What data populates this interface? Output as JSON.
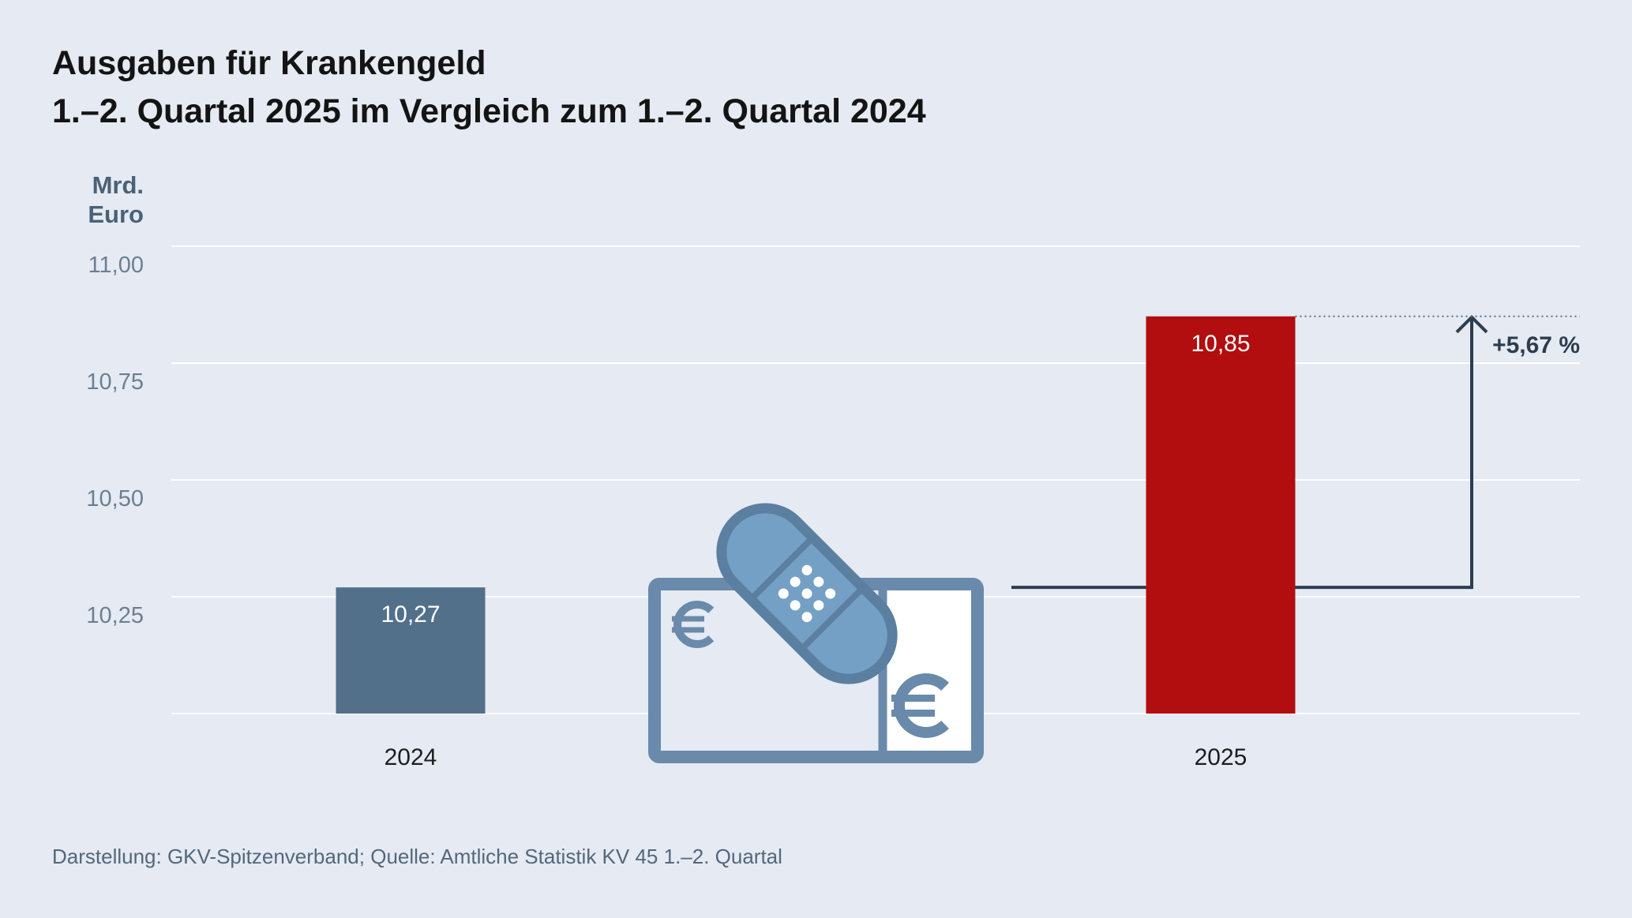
{
  "chart_data": {
    "type": "bar",
    "title": "Ausgaben für Krankengeld",
    "subtitle": "1.–2. Quartal 2025 im Vergleich zum 1.–2. Quartal 2024",
    "ylabel_lines": [
      "Mrd.",
      "Euro"
    ],
    "xlabel": "",
    "categories": [
      "2024",
      "2025"
    ],
    "values": [
      10.27,
      10.85
    ],
    "value_labels": [
      "10,27",
      "10,85"
    ],
    "ylim": [
      10.0,
      11.0
    ],
    "y_ticks": [
      {
        "value": 11.0,
        "label": "11,00"
      },
      {
        "value": 10.75,
        "label": "10,75"
      },
      {
        "value": 10.5,
        "label": "10,50"
      },
      {
        "value": 10.25,
        "label": "10,25"
      }
    ],
    "grid": true,
    "annotation": {
      "label": "+5,67 %"
    },
    "colors": {
      "bars": [
        "#52708a",
        "#b20d0f"
      ],
      "annotation": "#2c3d4f"
    }
  },
  "source": "Darstellung: GKV-Spitzenverband; Quelle: Amtliche Statistik KV 45 1.–2. Quartal",
  "illustration": {
    "icon": "banknote-bandage-icon"
  },
  "colors": {
    "background": "#e5eaf3",
    "illustration": "#6a8aab",
    "bandage": "#75a0c5"
  }
}
